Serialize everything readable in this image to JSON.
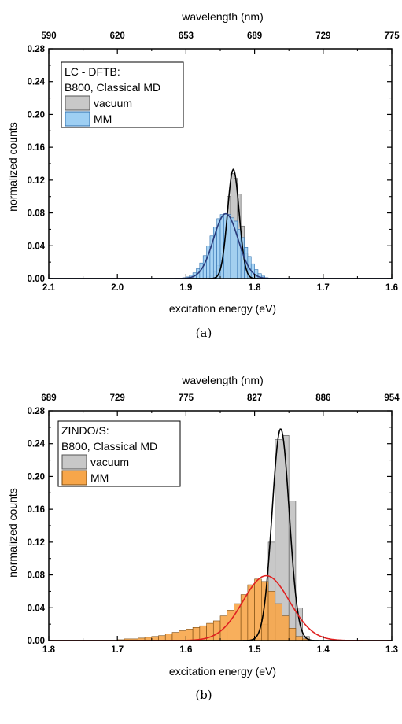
{
  "chart_data": [
    {
      "type": "bar",
      "caption": "(a)",
      "top_xlabel": "wavelength (nm)",
      "top_ticks": [
        "590",
        "620",
        "653",
        "689",
        "729",
        "775"
      ],
      "xlabel": "excitation energy (eV)",
      "ylabel": "normalized counts",
      "xlim": [
        2.1,
        1.6
      ],
      "ylim": [
        0,
        0.28
      ],
      "x_ticks": [
        "2.1",
        "2.0",
        "1.9",
        "1.8",
        "1.7",
        "1.6"
      ],
      "y_ticks": [
        "0.00",
        "0.04",
        "0.08",
        "0.12",
        "0.16",
        "0.20",
        "0.24",
        "0.28"
      ],
      "legend_title": [
        "LC - DFTB:",
        "B800, Classical MD"
      ],
      "legend_position": "top-left",
      "bin_width": 0.005,
      "series": [
        {
          "name": "vacuum",
          "color": "#c8c8c8",
          "edge": "#555555",
          "bin_start": 1.875,
          "values": [
            0.001,
            0.002,
            0.004,
            0.008,
            0.016,
            0.03,
            0.055,
            0.1,
            0.128,
            0.122,
            0.103,
            0.064,
            0.03,
            0.012,
            0.004,
            0.001
          ]
        },
        {
          "name": "MM",
          "color": "#9ecff3",
          "edge": "#2e6fae",
          "bin_start": 1.905,
          "values": [
            0.001,
            0.002,
            0.004,
            0.007,
            0.012,
            0.019,
            0.028,
            0.04,
            0.052,
            0.063,
            0.073,
            0.078,
            0.079,
            0.078,
            0.074,
            0.07,
            0.06,
            0.05,
            0.038,
            0.027,
            0.018,
            0.011,
            0.006,
            0.003,
            0.001
          ]
        }
      ],
      "fits": [
        {
          "series": "vacuum",
          "color": "#000000",
          "center": 1.831,
          "sigma": 0.0085,
          "amplitude": 0.133
        },
        {
          "series": "MM",
          "color": "#2a3a7a",
          "center": 1.842,
          "sigma": 0.018,
          "amplitude": 0.079
        }
      ]
    },
    {
      "type": "bar",
      "caption": "(b)",
      "top_xlabel": "wavelength (nm)",
      "top_ticks": [
        "689",
        "729",
        "775",
        "827",
        "886",
        "954"
      ],
      "xlabel": "excitation energy (eV)",
      "ylabel": "normalized counts",
      "xlim": [
        1.8,
        1.3
      ],
      "ylim": [
        0,
        0.28
      ],
      "x_ticks": [
        "1.8",
        "1.7",
        "1.6",
        "1.5",
        "1.4",
        "1.3"
      ],
      "y_ticks": [
        "0.00",
        "0.04",
        "0.08",
        "0.12",
        "0.16",
        "0.20",
        "0.24",
        "0.28"
      ],
      "legend_title": [
        "ZINDO/S:",
        "B800, Classical MD"
      ],
      "legend_position": "top-left",
      "bin_width": 0.01,
      "series": [
        {
          "name": "vacuum",
          "color": "#c8c8c8",
          "edge": "#555555",
          "bin_start": 1.5,
          "values": [
            0.002,
            0.02,
            0.12,
            0.245,
            0.25,
            0.17,
            0.04,
            0.005
          ]
        },
        {
          "name": "MM",
          "color": "#f7a64a",
          "edge": "#7a4a10",
          "bin_start": 1.7,
          "values": [
            0.001,
            0.002,
            0.002,
            0.003,
            0.004,
            0.005,
            0.006,
            0.008,
            0.01,
            0.012,
            0.014,
            0.016,
            0.018,
            0.021,
            0.024,
            0.03,
            0.037,
            0.045,
            0.056,
            0.068,
            0.075,
            0.072,
            0.06,
            0.045,
            0.03,
            0.015,
            0.005,
            0.002
          ]
        }
      ],
      "fits": [
        {
          "series": "vacuum",
          "color": "#000000",
          "center": 1.462,
          "sigma": 0.0125,
          "amplitude": 0.258
        },
        {
          "series": "MM",
          "color": "#e02020",
          "center": 1.483,
          "sigma": 0.034,
          "amplitude": 0.079
        }
      ]
    }
  ]
}
